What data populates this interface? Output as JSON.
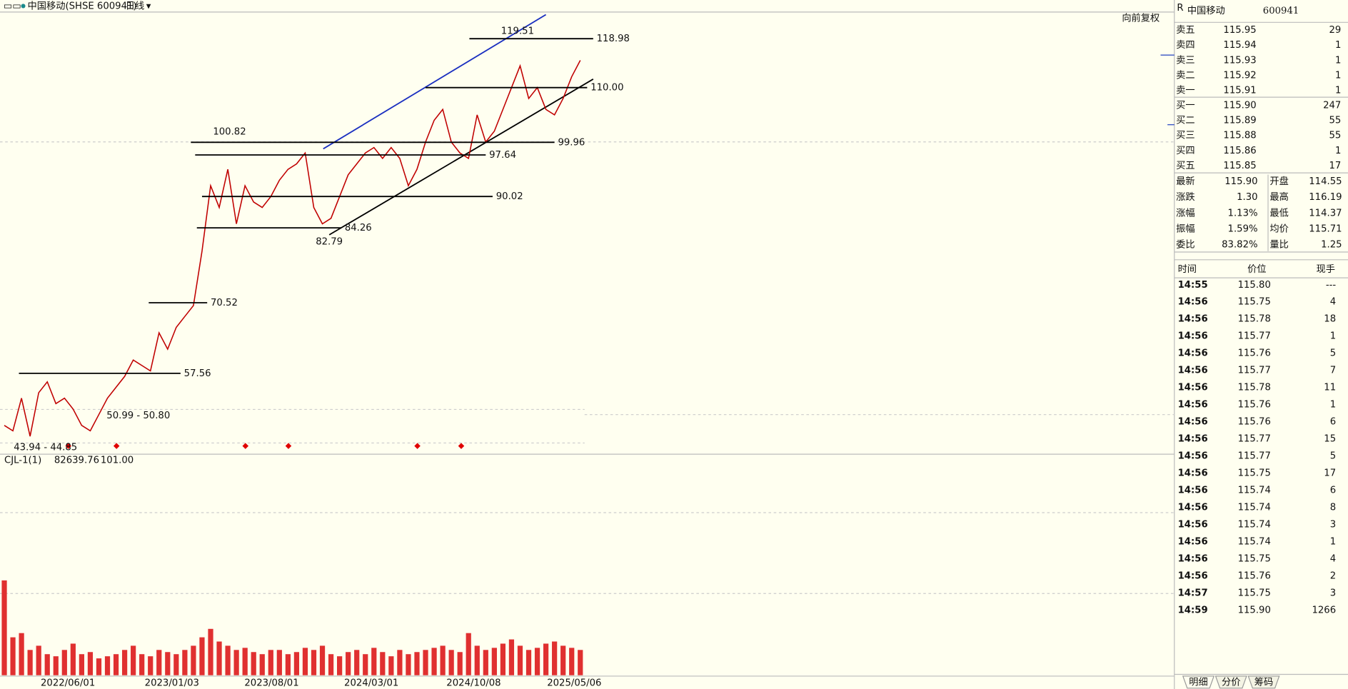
{
  "header": {
    "title": "中国移动(SHSE 600941)",
    "period": "日线",
    "adjust": "向前复权"
  },
  "price_chart": {
    "type": "line",
    "color": "#c00000",
    "ylim": [
      42.72,
      123.87
    ],
    "closes": [
      48,
      47,
      53,
      46,
      54,
      56,
      52,
      53,
      51,
      48,
      47,
      50,
      53,
      55,
      57,
      60,
      59,
      58,
      65,
      62,
      66,
      68,
      70,
      80,
      92,
      88,
      95,
      85,
      92,
      89,
      88,
      90,
      93,
      95,
      96,
      98,
      88,
      85,
      86,
      90,
      94,
      96,
      98,
      99,
      97,
      99,
      97,
      92,
      95,
      100,
      104,
      106,
      100,
      98,
      97,
      105,
      100,
      102,
      106,
      110,
      114,
      108,
      110,
      106,
      105,
      108,
      112,
      115
    ],
    "levels": [
      {
        "value": 118.98,
        "label": "118.98"
      },
      {
        "value": 110,
        "label": "110.00"
      },
      {
        "value": 99.96,
        "label": "99.96"
      },
      {
        "value": 97.64,
        "label": "97.64"
      },
      {
        "value": 90.02,
        "label": "90.02"
      },
      {
        "value": 84.26,
        "label": "84.26"
      },
      {
        "value": 70.52,
        "label": "70.52"
      },
      {
        "value": 57.56,
        "label": "57.56"
      }
    ],
    "annotations": [
      {
        "text": "119.51",
        "color": "#e03030"
      },
      {
        "text": "100.82",
        "color": "#e03030"
      },
      {
        "text": "82.79",
        "color": "#111111"
      },
      {
        "text": "50.99 - 50.80",
        "color": "#111111"
      },
      {
        "text": "43.94 - 44.85",
        "color": "#111111"
      }
    ],
    "x_labels": [
      "2022/06/01",
      "2023/01/03",
      "2023/08/01",
      "2024/03/01",
      "2024/10/08",
      "2025/05/06"
    ]
  },
  "volume": {
    "indicator": "CJL-1(1)",
    "value1": "82639.76",
    "value2": "101.00",
    "color": "#e03030",
    "ylim": [
      0,
      100
    ],
    "values": [
      45,
      18,
      20,
      12,
      14,
      10,
      9,
      12,
      15,
      10,
      11,
      8,
      9,
      10,
      12,
      14,
      10,
      9,
      12,
      11,
      10,
      12,
      14,
      18,
      22,
      16,
      14,
      12,
      13,
      11,
      10,
      12,
      12,
      10,
      11,
      13,
      12,
      14,
      10,
      9,
      11,
      12,
      10,
      13,
      11,
      9,
      12,
      10,
      11,
      12,
      13,
      14,
      12,
      11,
      20,
      14,
      12,
      13,
      15,
      17,
      14,
      12,
      13,
      15,
      16,
      14,
      13,
      12
    ]
  },
  "quote": {
    "badge": "R",
    "name": "中国移动",
    "code": "600941",
    "book": [
      {
        "label": "卖五",
        "price": "115.95",
        "qty": "29"
      },
      {
        "label": "卖四",
        "price": "115.94",
        "qty": "1"
      },
      {
        "label": "卖三",
        "price": "115.93",
        "qty": "1"
      },
      {
        "label": "卖二",
        "price": "115.92",
        "qty": "1"
      },
      {
        "label": "卖一",
        "price": "115.91",
        "qty": "1"
      },
      {
        "label": "买一",
        "price": "115.90",
        "qty": "247"
      },
      {
        "label": "买二",
        "price": "115.89",
        "qty": "55"
      },
      {
        "label": "买三",
        "price": "115.88",
        "qty": "55"
      },
      {
        "label": "买四",
        "price": "115.86",
        "qty": "1"
      },
      {
        "label": "买五",
        "price": "115.85",
        "qty": "17"
      }
    ],
    "stats": [
      [
        {
          "label": "最新",
          "value": "115.90",
          "color": "#e03030"
        },
        {
          "label": "开盘",
          "value": "114.55",
          "color": "#1a8a8a"
        }
      ],
      [
        {
          "label": "涨跌",
          "value": "1.30",
          "color": "#e03030"
        },
        {
          "label": "最高",
          "value": "116.19",
          "color": "#e03030"
        }
      ],
      [
        {
          "label": "涨幅",
          "value": "1.13%",
          "color": "#e03030"
        },
        {
          "label": "最低",
          "value": "114.37",
          "color": "#1a8a8a"
        }
      ],
      [
        {
          "label": "振幅",
          "value": "1.59%",
          "color": "#1a8a8a"
        },
        {
          "label": "均价",
          "value": "115.71",
          "color": "#e03030"
        }
      ],
      [
        {
          "label": "委比",
          "value": "83.82%",
          "color": "#1a8a8a"
        },
        {
          "label": "量比",
          "value": "1.25",
          "color": "#1a8a8a"
        }
      ]
    ]
  },
  "trades": {
    "headers": [
      "时间",
      "价位",
      "现手"
    ],
    "rows": [
      {
        "time": "14:55",
        "price": "115.80",
        "qty": "---",
        "color": "#e03030"
      },
      {
        "time": "14:56",
        "price": "115.75",
        "qty": "4",
        "color": "#1a8a8a"
      },
      {
        "time": "14:56",
        "price": "115.78",
        "qty": "18",
        "color": "#e03030"
      },
      {
        "time": "14:56",
        "price": "115.77",
        "qty": "1",
        "color": "#e03030"
      },
      {
        "time": "14:56",
        "price": "115.76",
        "qty": "5",
        "color": "#e03030"
      },
      {
        "time": "14:56",
        "price": "115.77",
        "qty": "7",
        "color": "#e03030"
      },
      {
        "time": "14:56",
        "price": "115.78",
        "qty": "11",
        "color": "#e03030"
      },
      {
        "time": "14:56",
        "price": "115.76",
        "qty": "1",
        "color": "#1a8a8a"
      },
      {
        "time": "14:56",
        "price": "115.76",
        "qty": "6",
        "color": "#e03030"
      },
      {
        "time": "14:56",
        "price": "115.77",
        "qty": "15",
        "color": "#e03030"
      },
      {
        "time": "14:56",
        "price": "115.77",
        "qty": "5",
        "color": "#1a8a8a"
      },
      {
        "time": "14:56",
        "price": "115.75",
        "qty": "17",
        "color": "#1a8a8a"
      },
      {
        "time": "14:56",
        "price": "115.74",
        "qty": "6",
        "color": "#1a8a8a"
      },
      {
        "time": "14:56",
        "price": "115.74",
        "qty": "8",
        "color": "#1a8a8a"
      },
      {
        "time": "14:56",
        "price": "115.74",
        "qty": "3",
        "color": "#1a8a8a"
      },
      {
        "time": "14:56",
        "price": "115.74",
        "qty": "1",
        "color": "#1a8a8a"
      },
      {
        "time": "14:56",
        "price": "115.75",
        "qty": "4",
        "color": "#e03030"
      },
      {
        "time": "14:56",
        "price": "115.76",
        "qty": "2",
        "color": "#e03030"
      },
      {
        "time": "14:57",
        "price": "115.75",
        "qty": "3",
        "color": "#1a8a8a"
      },
      {
        "time": "14:59",
        "price": "115.90",
        "qty": "1266",
        "color": "#e03030"
      }
    ]
  },
  "tabs": [
    "明细",
    "分价",
    "筹码"
  ]
}
